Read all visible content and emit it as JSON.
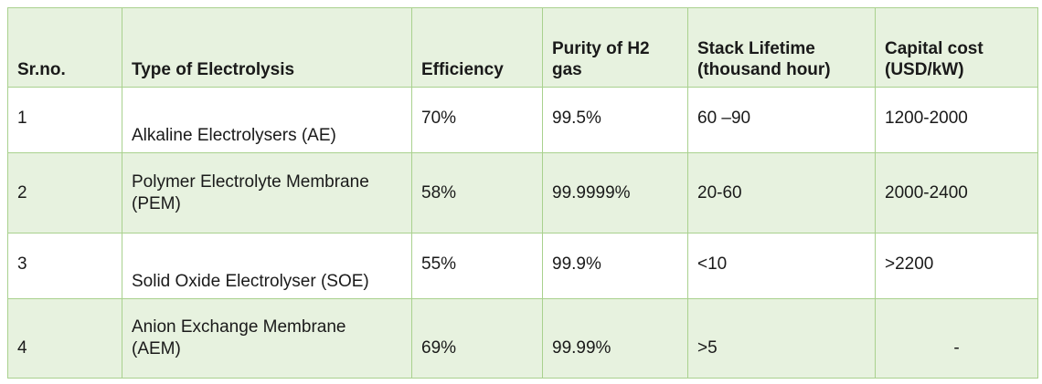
{
  "table": {
    "header": [
      "Sr.no.",
      "Type of Electrolysis",
      "Efficiency",
      "Purity of H2\ngas",
      "Stack Lifetime\n(thousand hour)",
      "Capital cost\n(USD/kW)"
    ],
    "rows": [
      [
        "1",
        "Alkaline Electrolysers (AE)",
        "70%",
        "99.5%",
        "60 –90",
        "1200-2000"
      ],
      [
        "2",
        "Polymer Electrolyte Membrane\n(PEM)",
        "58%",
        "99.9999%",
        "20-60",
        "2000-2400"
      ],
      [
        "3",
        "Solid Oxide Electrolyser (SOE)",
        "55%",
        "99.9%",
        "<10",
        ">2200"
      ],
      [
        "4",
        "Anion Exchange Membrane\n(AEM)",
        "69%",
        "99.99%",
        ">5",
        "-"
      ]
    ]
  }
}
